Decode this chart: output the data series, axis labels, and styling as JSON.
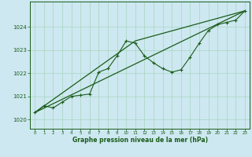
{
  "bg_color": "#cde8f0",
  "grid_color": "#a8d5c2",
  "line_color": "#1a5c1a",
  "marker_color": "#1a5c1a",
  "xlabel": "Graphe pression niveau de la mer (hPa)",
  "xlabel_color": "#1a5c1a",
  "tick_color": "#1a5c1a",
  "xlim": [
    -0.5,
    23.5
  ],
  "ylim": [
    1019.6,
    1025.1
  ],
  "yticks": [
    1020,
    1021,
    1022,
    1023,
    1024
  ],
  "xticks": [
    0,
    1,
    2,
    3,
    4,
    5,
    6,
    7,
    8,
    9,
    10,
    11,
    12,
    13,
    14,
    15,
    16,
    17,
    18,
    19,
    20,
    21,
    22,
    23
  ],
  "jagged_x": [
    0,
    1,
    2,
    3,
    4,
    5,
    6,
    7,
    8,
    9,
    10,
    11,
    12,
    13,
    14,
    15,
    16,
    17,
    18,
    19,
    20,
    21,
    22,
    23
  ],
  "jagged_y": [
    1020.3,
    1020.6,
    1020.5,
    1020.75,
    1021.0,
    1021.05,
    1021.1,
    1022.05,
    1022.2,
    1022.75,
    1023.4,
    1023.3,
    1022.75,
    1022.45,
    1022.2,
    1022.05,
    1022.15,
    1022.7,
    1023.3,
    1023.85,
    1024.1,
    1024.2,
    1024.3,
    1024.7
  ],
  "line1_x": [
    0,
    23
  ],
  "line1_y": [
    1020.3,
    1024.7
  ],
  "line2_x": [
    0,
    11,
    23
  ],
  "line2_y": [
    1020.3,
    1023.4,
    1024.7
  ]
}
